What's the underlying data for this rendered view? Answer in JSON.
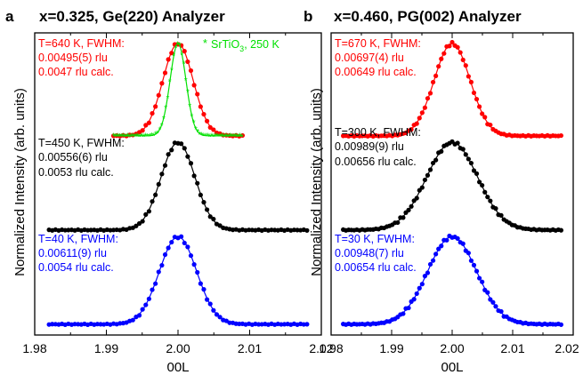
{
  "chart_data": [
    {
      "type": "scatter",
      "panel_label": "a",
      "title": "x=0.325, Ge(220) Analyzer",
      "xlabel": "00L",
      "ylabel": "Normalized Intensity (arb. units)",
      "xlim": [
        1.98,
        2.02
      ],
      "xticks": [
        "1.98",
        "1.99",
        "2.00",
        "2.01",
        "2.02"
      ],
      "y_tick_labels": "none",
      "colors": {
        "red": "#ff0000",
        "black": "#000000",
        "blue": "#0000ff",
        "green": "#00e000"
      },
      "series": [
        {
          "name": "T=640 K",
          "color": "#ff0000",
          "center": 2.0,
          "peak": 1.0,
          "baseline": 0.02,
          "fwhm": 0.00495,
          "offset": 2.0,
          "x_range": [
            1.991,
            2.009
          ]
        },
        {
          "name": "SrTiO3, 250 K",
          "color": "#00e000",
          "center": 2.0,
          "peak": 1.0,
          "baseline": 0.02,
          "fwhm": 0.0026,
          "offset": 2.0,
          "x_range": [
            1.991,
            2.009
          ]
        },
        {
          "name": "T=450 K",
          "color": "#000000",
          "center": 2.0,
          "peak": 0.95,
          "baseline": 0.02,
          "fwhm": 0.00556,
          "offset": 1.0,
          "x_range": [
            1.982,
            2.018
          ]
        },
        {
          "name": "T=40 K",
          "color": "#0000ff",
          "center": 2.0,
          "peak": 0.95,
          "baseline": 0.02,
          "fwhm": 0.00611,
          "offset": 0.0,
          "x_range": [
            1.982,
            2.018
          ]
        }
      ],
      "annotations": [
        {
          "lines": [
            "T=640 K, FWHM:",
            "0.00495(5) rlu",
            "0.0047 rlu calc."
          ],
          "color": "#ff0000"
        },
        {
          "text": "SrTiO",
          "sub": "3",
          "after": ", 250 K",
          "color": "#00e000",
          "marker": "*"
        },
        {
          "lines": [
            "T=450 K, FWHM:",
            "0.00556(6) rlu",
            "0.0053 rlu calc."
          ],
          "color": "#000000"
        },
        {
          "lines": [
            "T=40 K, FWHM:",
            "0.00611(9) rlu",
            "0.0054 rlu calc."
          ],
          "color": "#0000ff"
        }
      ]
    },
    {
      "type": "scatter",
      "panel_label": "b",
      "title": "x=0.460, PG(002) Analyzer",
      "xlabel": "00L",
      "ylabel": "Normalized Intensity (arb. units)",
      "xlim": [
        1.98,
        2.02
      ],
      "xticks": [
        "1.98",
        "1.99",
        "2.00",
        "2.01",
        "2.02"
      ],
      "y_tick_labels": "none",
      "series": [
        {
          "name": "T=670 K",
          "color": "#ff0000",
          "center": 2.0,
          "peak": 1.0,
          "baseline": 0.02,
          "fwhm": 0.00697,
          "offset": 2.0,
          "x_range": [
            1.982,
            2.018
          ]
        },
        {
          "name": "T=300 K",
          "color": "#000000",
          "center": 2.0,
          "peak": 0.95,
          "baseline": 0.02,
          "fwhm": 0.00989,
          "offset": 1.0,
          "x_range": [
            1.982,
            2.018
          ]
        },
        {
          "name": "T=30 K",
          "color": "#0000ff",
          "center": 2.0,
          "peak": 0.95,
          "baseline": 0.02,
          "fwhm": 0.00948,
          "offset": 0.0,
          "x_range": [
            1.982,
            2.018
          ]
        }
      ],
      "annotations": [
        {
          "lines": [
            "T=670 K, FWHM:",
            "0.00697(4) rlu",
            "0.00649 rlu calc."
          ],
          "color": "#ff0000"
        },
        {
          "lines": [
            "T=300 K, FWHM:",
            "0.00989(9) rlu",
            "0.00656 rlu calc."
          ],
          "color": "#000000"
        },
        {
          "lines": [
            "T=30 K, FWHM:",
            "0.00948(7) rlu",
            "0.00654 rlu calc."
          ],
          "color": "#0000ff"
        }
      ]
    }
  ]
}
